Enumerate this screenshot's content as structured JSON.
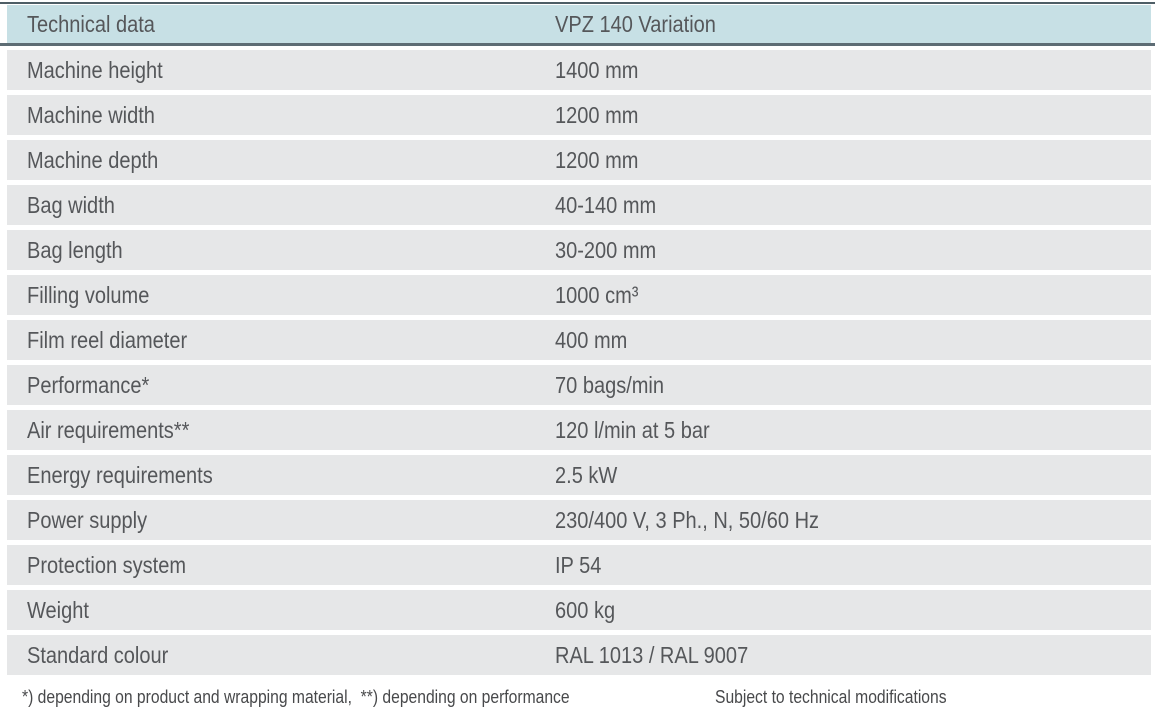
{
  "table": {
    "header": {
      "label": "Technical data",
      "value": "VPZ 140 Variation"
    },
    "rows": [
      {
        "label": "Machine height",
        "value": "1400 mm"
      },
      {
        "label": "Machine width",
        "value": "1200 mm"
      },
      {
        "label": "Machine depth",
        "value": "1200 mm"
      },
      {
        "label": "Bag width",
        "value": "40-140 mm"
      },
      {
        "label": "Bag length",
        "value": "30-200 mm"
      },
      {
        "label": "Filling volume",
        "value": "1000 cm³"
      },
      {
        "label": "Film reel diameter",
        "value": "400 mm"
      },
      {
        "label": "Performance*",
        "value": "70 bags/min"
      },
      {
        "label": "Air requirements**",
        "value": "120 l/min at 5 bar"
      },
      {
        "label": "Energy requirements",
        "value": "2.5 kW"
      },
      {
        "label": "Power supply",
        "value": "230/400 V, 3 Ph., N, 50/60 Hz"
      },
      {
        "label": "Protection system",
        "value": "IP 54"
      },
      {
        "label": "Weight",
        "value": "600 kg"
      },
      {
        "label": "Standard colour",
        "value": "RAL 1013 / RAL 9007"
      }
    ]
  },
  "footer": {
    "left": "*) depending on product and wrapping material,  **) depending on performance",
    "right": "Subject to technical modifications"
  },
  "colors": {
    "header_background": "#c7e0e5",
    "row_background": "#e6e7e8",
    "top_rule": "#4e5e66",
    "header_rule": "#5d6c74",
    "text": "#55575a",
    "footer_text": "#48494b"
  }
}
